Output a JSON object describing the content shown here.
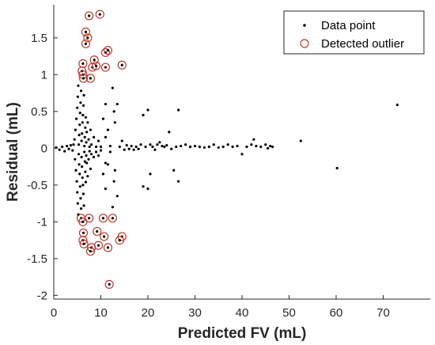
{
  "chart_data": {
    "type": "scatter",
    "title": "",
    "xlabel": "Predicted FV (mL)",
    "ylabel": "Residual (mL)",
    "xlim": [
      0,
      80
    ],
    "ylim": [
      -2.05,
      1.95
    ],
    "xticks": [
      0,
      10,
      20,
      30,
      40,
      50,
      60,
      70
    ],
    "yticks": [
      -2,
      -1.5,
      -1,
      -0.5,
      0,
      0.5,
      1,
      1.5
    ],
    "ytick_labels": [
      "-2",
      "-1.5",
      "-1",
      "-0.5",
      "0",
      "0.5",
      "1",
      "1.5"
    ],
    "grid": false,
    "legend_position": "top-right",
    "colors": {
      "data_point": "#000000",
      "outlier_ring": "#c0392b",
      "axis": "#262626"
    },
    "series": [
      {
        "name": "Data point",
        "marker": "dot",
        "points": [
          [
            0.5,
            0.01
          ],
          [
            1.2,
            -0.02
          ],
          [
            1.8,
            0.02
          ],
          [
            2.3,
            -0.04
          ],
          [
            2.8,
            0.03
          ],
          [
            3.2,
            -0.01
          ],
          [
            3.6,
            0.04
          ],
          [
            4.0,
            -0.03
          ],
          [
            4.2,
            0.05
          ],
          [
            4.4,
            0.12
          ],
          [
            4.5,
            -0.15
          ],
          [
            4.6,
            0.25
          ],
          [
            4.7,
            -0.3
          ],
          [
            4.8,
            0.4
          ],
          [
            4.9,
            -0.45
          ],
          [
            5.0,
            0.55
          ],
          [
            5.0,
            -0.6
          ],
          [
            5.1,
            0.7
          ],
          [
            5.1,
            -0.75
          ],
          [
            5.2,
            0.85
          ],
          [
            5.2,
            -0.9
          ],
          [
            5.3,
            0.05
          ],
          [
            5.3,
            -0.08
          ],
          [
            5.4,
            0.18
          ],
          [
            5.4,
            -0.22
          ],
          [
            5.5,
            0.32
          ],
          [
            5.5,
            -0.35
          ],
          [
            5.6,
            0.48
          ],
          [
            5.6,
            -0.52
          ],
          [
            5.7,
            0.62
          ],
          [
            5.7,
            -0.68
          ],
          [
            5.8,
            0.78
          ],
          [
            5.8,
            -0.82
          ],
          [
            5.9,
            0.1
          ],
          [
            5.9,
            -0.12
          ],
          [
            6.0,
            0.2
          ],
          [
            6.0,
            -0.25
          ],
          [
            6.1,
            0.35
          ],
          [
            6.1,
            -0.4
          ],
          [
            6.2,
            0.45
          ],
          [
            6.2,
            -0.5
          ],
          [
            6.3,
            0.58
          ],
          [
            6.3,
            -0.62
          ],
          [
            6.4,
            0.72
          ],
          [
            6.4,
            -0.78
          ],
          [
            6.5,
            0.03
          ],
          [
            6.5,
            -0.05
          ],
          [
            6.6,
            0.15
          ],
          [
            6.6,
            -0.18
          ],
          [
            6.7,
            0.28
          ],
          [
            6.7,
            -0.32
          ],
          [
            6.8,
            0.42
          ],
          [
            6.8,
            -0.46
          ],
          [
            6.9,
            0.08
          ],
          [
            6.9,
            -0.1
          ],
          [
            7.0,
            0.22
          ],
          [
            7.0,
            -0.2
          ],
          [
            7.2,
            0.35
          ],
          [
            7.2,
            -0.38
          ],
          [
            7.4,
            0.12
          ],
          [
            7.4,
            -0.15
          ],
          [
            7.6,
            0.02
          ],
          [
            7.6,
            -0.04
          ],
          [
            7.8,
            0.25
          ],
          [
            7.8,
            -0.28
          ],
          [
            8.0,
            0.05
          ],
          [
            8.0,
            -0.08
          ],
          [
            8.5,
            0.15
          ],
          [
            8.5,
            -0.12
          ],
          [
            9.0,
            0.02
          ],
          [
            9.0,
            -0.05
          ],
          [
            9.5,
            0.1
          ],
          [
            9.5,
            -0.1
          ],
          [
            10.0,
            0.02
          ],
          [
            10.0,
            -0.03
          ],
          [
            10.5,
            0.4
          ],
          [
            10.5,
            -0.35
          ],
          [
            11.0,
            0.6
          ],
          [
            11.0,
            -0.55
          ],
          [
            11.0,
            0.15
          ],
          [
            11.0,
            -0.2
          ],
          [
            11.5,
            0.25
          ],
          [
            11.5,
            -0.22
          ],
          [
            12.0,
            0.03
          ],
          [
            12.0,
            -0.05
          ],
          [
            12.5,
            0.82
          ],
          [
            12.5,
            -0.8
          ],
          [
            12.8,
            0.5
          ],
          [
            12.8,
            -0.45
          ],
          [
            13.0,
            0.35
          ],
          [
            13.0,
            -0.3
          ],
          [
            13.5,
            0.6
          ],
          [
            13.5,
            -0.65
          ],
          [
            14.0,
            0.02
          ],
          [
            14.5,
            0.1
          ],
          [
            15.0,
            -0.02
          ],
          [
            15.5,
            0.04
          ],
          [
            16.0,
            -0.01
          ],
          [
            16.5,
            0.03
          ],
          [
            17.0,
            -0.02
          ],
          [
            17.5,
            0.02
          ],
          [
            18.0,
            -0.01
          ],
          [
            18.5,
            0.05
          ],
          [
            19.0,
            0.45
          ],
          [
            19.0,
            -0.52
          ],
          [
            19.5,
            0.02
          ],
          [
            20.0,
            0.52
          ],
          [
            20.0,
            -0.55
          ],
          [
            20.5,
            0.05
          ],
          [
            20.5,
            -0.35
          ],
          [
            21.0,
            0.02
          ],
          [
            21.5,
            -0.02
          ],
          [
            22.0,
            0.05
          ],
          [
            22.5,
            0.08
          ],
          [
            23.0,
            0.03
          ],
          [
            23.5,
            0.02
          ],
          [
            24.0,
            0.04
          ],
          [
            24.5,
            0.22
          ],
          [
            25.0,
            -0.01
          ],
          [
            25.5,
            -0.3
          ],
          [
            26.0,
            0.02
          ],
          [
            26.5,
            0.52
          ],
          [
            26.5,
            -0.45
          ],
          [
            27.0,
            0.03
          ],
          [
            28.0,
            0.05
          ],
          [
            29.0,
            0.02
          ],
          [
            30.0,
            0.03
          ],
          [
            31.0,
            0.02
          ],
          [
            32.0,
            0.01
          ],
          [
            33.0,
            0.02
          ],
          [
            34.0,
            0.05
          ],
          [
            35.0,
            0.01
          ],
          [
            36.0,
            0.02
          ],
          [
            37.0,
            0.05
          ],
          [
            38.0,
            0.02
          ],
          [
            39.0,
            0.03
          ],
          [
            40.0,
            -0.08
          ],
          [
            41.0,
            0.02
          ],
          [
            42.0,
            0.05
          ],
          [
            42.5,
            0.12
          ],
          [
            43.0,
            0.03
          ],
          [
            44.0,
            0.02
          ],
          [
            45.0,
            0.05
          ],
          [
            45.5,
            0.0
          ],
          [
            46.0,
            0.03
          ],
          [
            46.5,
            0.02
          ],
          [
            52.5,
            0.1
          ],
          [
            60.2,
            -0.27
          ],
          [
            73.0,
            0.59
          ]
        ]
      },
      {
        "name": "Detected outlier",
        "marker": "ring",
        "points": [
          [
            6.2,
            1.15
          ],
          [
            6.0,
            1.05
          ],
          [
            6.2,
            1.0
          ],
          [
            6.3,
            0.95
          ],
          [
            6.8,
            1.58
          ],
          [
            6.8,
            1.42
          ],
          [
            7.2,
            1.5
          ],
          [
            7.5,
            1.8
          ],
          [
            7.8,
            0.95
          ],
          [
            8.2,
            1.1
          ],
          [
            8.6,
            1.2
          ],
          [
            9.0,
            1.12
          ],
          [
            9.8,
            1.82
          ],
          [
            11.0,
            1.3
          ],
          [
            11.5,
            1.33
          ],
          [
            11.0,
            1.1
          ],
          [
            14.5,
            1.13
          ],
          [
            5.8,
            -0.95
          ],
          [
            6.2,
            -1.0
          ],
          [
            6.3,
            -1.15
          ],
          [
            6.2,
            -1.25
          ],
          [
            6.4,
            -1.3
          ],
          [
            7.5,
            -0.95
          ],
          [
            8.0,
            -1.35
          ],
          [
            7.8,
            -1.4
          ],
          [
            9.2,
            -1.13
          ],
          [
            9.5,
            -1.32
          ],
          [
            10.5,
            -0.95
          ],
          [
            10.7,
            -1.2
          ],
          [
            11.5,
            -1.35
          ],
          [
            12.5,
            -0.95
          ],
          [
            14.5,
            -1.2
          ],
          [
            14.0,
            -1.25
          ],
          [
            11.8,
            -1.85
          ]
        ]
      }
    ]
  }
}
